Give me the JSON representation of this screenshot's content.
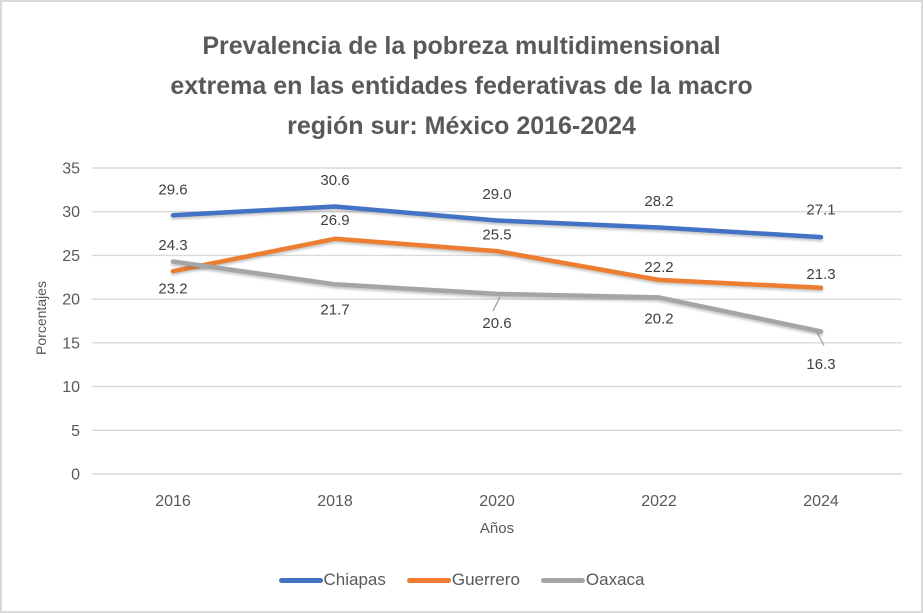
{
  "chart_data": {
    "type": "line",
    "title": "Prevalencia de la pobreza multidimensional extrema en las entidades federativas de la macro región sur: México 2016-2024",
    "title_lines": [
      "Prevalencia de la pobreza multidimensional",
      "extrema en las entidades federativas de la macro",
      "región sur: México 2016-2024"
    ],
    "xlabel": "Años",
    "ylabel": "Porcentajes",
    "categories": [
      "2016",
      "2018",
      "2020",
      "2022",
      "2024"
    ],
    "series": [
      {
        "name": "Chiapas",
        "color": "#4472C4",
        "values": [
          29.6,
          30.6,
          29.0,
          28.2,
          27.1
        ],
        "label_offsets": [
          -26,
          -27,
          -27,
          -27,
          -28
        ],
        "leader_line_indices": []
      },
      {
        "name": "Guerrero",
        "color": "#ED7D31",
        "values": [
          23.2,
          26.9,
          25.5,
          22.2,
          21.3
        ],
        "label_offsets": [
          17,
          -19,
          -17,
          -13,
          -14
        ],
        "leader_line_indices": []
      },
      {
        "name": "Oaxaca",
        "color": "#A5A5A5",
        "values": [
          24.3,
          21.7,
          20.6,
          20.2,
          16.3
        ],
        "label_offsets": [
          -17,
          25,
          29,
          21,
          32
        ],
        "leader_line_indices": [
          2,
          4
        ]
      }
    ],
    "ylim": [
      0,
      35
    ],
    "yticks": [
      0,
      5,
      10,
      15,
      20,
      25,
      30,
      35
    ],
    "ytick_step": 5,
    "grid": true,
    "legend_position": "bottom",
    "data_label_decimals": 1,
    "colors": {
      "grid": "#D9D9D9",
      "axis_text": "#595959",
      "data_label_text": "#404040",
      "title_text": "#595959",
      "border": "#D9D9D9",
      "background": "#FFFFFF"
    }
  }
}
